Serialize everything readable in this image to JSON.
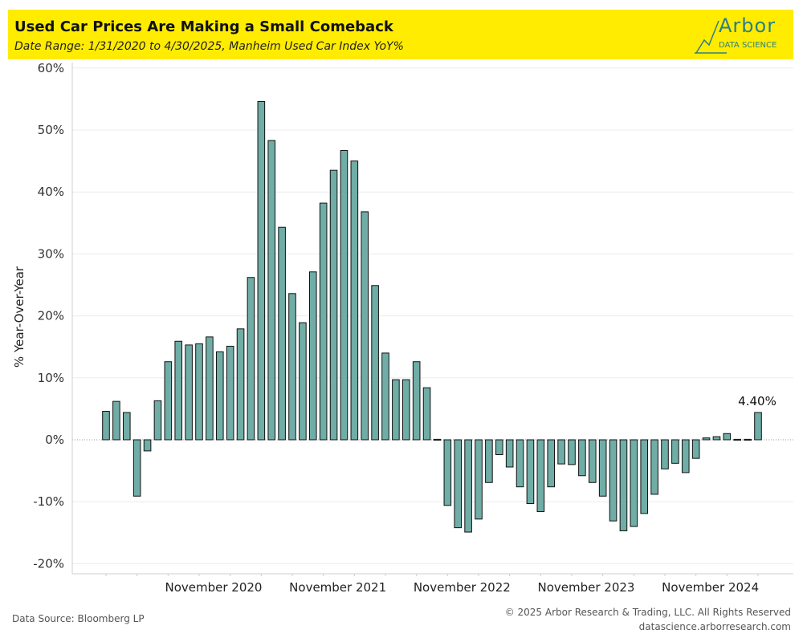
{
  "header": {
    "title": "Used Car Prices Are Making a Small Comeback",
    "subtitle": "Date Range: 1/31/2020 to 4/30/2025, Manheim Used Car Index YoY%"
  },
  "logo": {
    "name": "Arbor",
    "sub": "DATA SCIENCE",
    "color": "#2b7f88"
  },
  "footer": {
    "source": "Data Source: Bloomberg LP",
    "copyright": "© 2025 Arbor Research & Trading, LLC. All Rights Reserved",
    "website": "datascience.arborresearch.com"
  },
  "chart_data": {
    "type": "bar",
    "title": "Used Car Prices Are Making a Small Comeback",
    "subtitle": "Date Range: 1/31/2020 to 4/30/2025, Manheim Used Car Index YoY%",
    "ylabel": "% Year-Over-Year",
    "xlabel": "",
    "ylim": [
      -22,
      62
    ],
    "yticks": [
      60,
      50,
      40,
      30,
      20,
      10,
      0,
      -10,
      -20
    ],
    "ytick_labels": [
      "60%",
      "50%",
      "40%",
      "30%",
      "20%",
      "10%",
      "0%",
      "-10%",
      "-20%"
    ],
    "x_tick_labels": [
      {
        "label": "November 2020",
        "index": 9
      },
      {
        "label": "November 2021",
        "index": 21
      },
      {
        "label": "November 2022",
        "index": 33
      },
      {
        "label": "November 2023",
        "index": 45
      },
      {
        "label": "November 2024",
        "index": 57
      }
    ],
    "grid": true,
    "bar_color": "#6fada6",
    "bar_edge_color": "#111111",
    "annotation": {
      "label": "4.40%",
      "index": 63
    },
    "categories": [
      "2020-01",
      "2020-02",
      "2020-03",
      "2020-04",
      "2020-05",
      "2020-06",
      "2020-07",
      "2020-08",
      "2020-09",
      "2020-10",
      "2020-11",
      "2020-12",
      "2021-01",
      "2021-02",
      "2021-03",
      "2021-04",
      "2021-05",
      "2021-06",
      "2021-07",
      "2021-08",
      "2021-09",
      "2021-10",
      "2021-11",
      "2021-12",
      "2022-01",
      "2022-02",
      "2022-03",
      "2022-04",
      "2022-05",
      "2022-06",
      "2022-07",
      "2022-08",
      "2022-09",
      "2022-10",
      "2022-11",
      "2022-12",
      "2023-01",
      "2023-02",
      "2023-03",
      "2023-04",
      "2023-05",
      "2023-06",
      "2023-07",
      "2023-08",
      "2023-09",
      "2023-10",
      "2023-11",
      "2023-12",
      "2024-01",
      "2024-02",
      "2024-03",
      "2024-04",
      "2024-05",
      "2024-06",
      "2024-07",
      "2024-08",
      "2024-09",
      "2024-10",
      "2024-11",
      "2024-12",
      "2025-01",
      "2025-02",
      "2025-03",
      "2025-04"
    ],
    "values": [
      4.6,
      6.2,
      4.4,
      -9.1,
      -1.8,
      6.3,
      12.6,
      15.9,
      15.3,
      15.5,
      16.6,
      14.2,
      15.1,
      17.9,
      26.2,
      54.6,
      48.3,
      34.3,
      23.6,
      18.9,
      27.1,
      38.2,
      43.5,
      46.7,
      45.0,
      36.8,
      24.9,
      14.0,
      9.7,
      9.7,
      12.6,
      8.4,
      -0.1,
      -10.6,
      -14.2,
      -14.9,
      -12.8,
      -6.9,
      -2.4,
      -4.4,
      -7.6,
      -10.3,
      -11.6,
      -7.6,
      -3.9,
      -4.0,
      -5.8,
      -6.9,
      -9.1,
      -13.1,
      -14.7,
      -14.0,
      -11.9,
      -8.8,
      -4.7,
      -3.8,
      -5.3,
      -3.0,
      0.3,
      0.5,
      1.0,
      0.1,
      -0.1,
      4.4
    ]
  }
}
